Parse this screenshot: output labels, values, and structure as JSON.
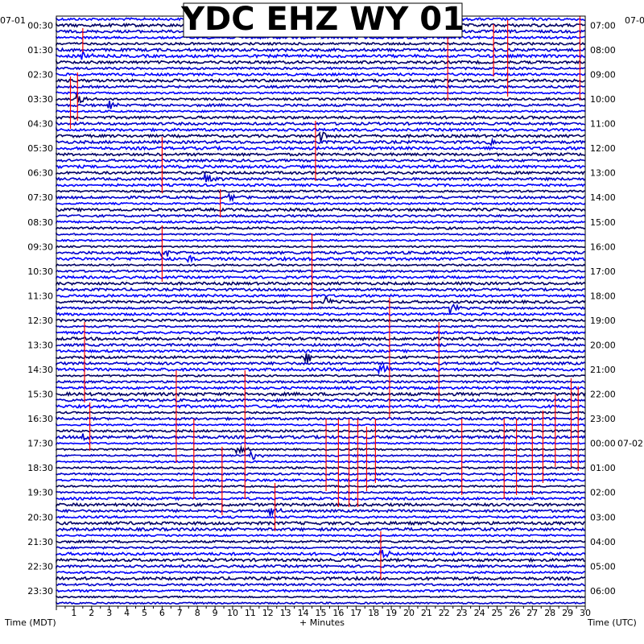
{
  "chart_data": {
    "type": "helicorder",
    "title": "YDC EHZ WY 01",
    "xlabel": "+ Minutes",
    "left_axis_label": "Time (MDT)",
    "right_axis_label": "Time (UTC)",
    "left_date": "07-01",
    "right_date_top": "07-0",
    "right_date_bottom": "07-02",
    "minutes_per_line": 15,
    "x_ticks": [
      "1",
      "2",
      "3",
      "4",
      "5",
      "6",
      "7",
      "8",
      "9",
      "10",
      "11",
      "12",
      "13",
      "14",
      "15",
      "16",
      "17",
      "18",
      "19",
      "20",
      "21",
      "22",
      "23",
      "24",
      "25",
      "26",
      "27",
      "28",
      "29",
      "30"
    ],
    "xlim": [
      0,
      30
    ],
    "left_hour_labels": [
      "00:30",
      "01:30",
      "02:30",
      "03:30",
      "04:30",
      "05:30",
      "06:30",
      "07:30",
      "08:30",
      "09:30",
      "10:30",
      "11:30",
      "12:30",
      "13:30",
      "14:30",
      "15:30",
      "16:30",
      "17:30",
      "18:30",
      "19:30",
      "20:30",
      "21:30",
      "22:30",
      "23:30"
    ],
    "right_hour_labels": [
      "07:00",
      "08:00",
      "09:00",
      "10:00",
      "11:00",
      "12:00",
      "13:00",
      "14:00",
      "15:00",
      "16:00",
      "17:00",
      "18:00",
      "19:00",
      "20:00",
      "21:00",
      "22:00",
      "23:00",
      "00:00",
      "01:00",
      "02:00",
      "03:00",
      "04:00",
      "05:00",
      "06:00"
    ],
    "trace_colors": [
      "#0000ff",
      "#000066",
      "#0000cc"
    ],
    "clip_color": "#ff0000",
    "grid": true
  }
}
